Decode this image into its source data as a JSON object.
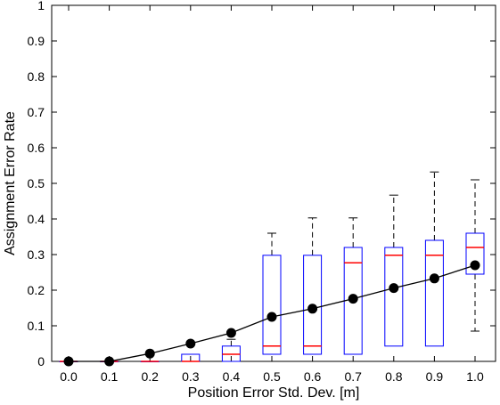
{
  "chart_data": {
    "type": "box",
    "xlabel": "Position Error Std. Dev. [m]",
    "ylabel": "Assignment Error Rate",
    "categories": [
      "0.0",
      "0.1",
      "0.2",
      "0.3",
      "0.4",
      "0.5",
      "0.6",
      "0.7",
      "0.8",
      "0.9",
      "1.0"
    ],
    "ylim": [
      0,
      1
    ],
    "yticks": [
      "0",
      "0.1",
      "0.2",
      "0.3",
      "0.4",
      "0.5",
      "0.6",
      "0.7",
      "0.8",
      "0.9",
      "1"
    ],
    "grid": false,
    "legend": "none",
    "boxes": [
      {
        "category": "0.0",
        "whisker_low": 0,
        "q1": 0,
        "median": 0,
        "q3": 0,
        "whisker_high": 0
      },
      {
        "category": "0.1",
        "whisker_low": 0,
        "q1": 0,
        "median": 0,
        "q3": 0,
        "whisker_high": 0
      },
      {
        "category": "0.2",
        "whisker_low": 0,
        "q1": 0,
        "median": 0,
        "q3": 0,
        "whisker_high": 0
      },
      {
        "category": "0.3",
        "whisker_low": 0,
        "q1": 0,
        "median": 0,
        "q3": 0.02,
        "whisker_high": 0.02
      },
      {
        "category": "0.4",
        "whisker_low": 0,
        "q1": 0,
        "median": 0.02,
        "q3": 0.043,
        "whisker_high": 0.062
      },
      {
        "category": "0.5",
        "whisker_low": 0.02,
        "q1": 0.02,
        "median": 0.043,
        "q3": 0.298,
        "whisker_high": 0.36
      },
      {
        "category": "0.6",
        "whisker_low": 0.02,
        "q1": 0.02,
        "median": 0.043,
        "q3": 0.298,
        "whisker_high": 0.403
      },
      {
        "category": "0.7",
        "whisker_low": 0.02,
        "q1": 0.02,
        "median": 0.277,
        "q3": 0.32,
        "whisker_high": 0.403
      },
      {
        "category": "0.8",
        "whisker_low": 0.043,
        "q1": 0.043,
        "median": 0.298,
        "q3": 0.32,
        "whisker_high": 0.467
      },
      {
        "category": "0.9",
        "whisker_low": 0.043,
        "q1": 0.043,
        "median": 0.298,
        "q3": 0.34,
        "whisker_high": 0.532
      },
      {
        "category": "1.0",
        "whisker_low": 0.085,
        "q1": 0.245,
        "median": 0.32,
        "q3": 0.36,
        "whisker_high": 0.51
      }
    ],
    "mean_series": {
      "values": [
        0,
        0,
        0.022,
        0.05,
        0.08,
        0.125,
        0.148,
        0.176,
        0.206,
        0.233,
        0.27
      ]
    },
    "colors": {
      "box": "#0000ff",
      "median": "#ff0000",
      "whisker": "#000000",
      "mean_line": "#000000",
      "mean_marker": "#000000",
      "axes": "#000000"
    }
  }
}
